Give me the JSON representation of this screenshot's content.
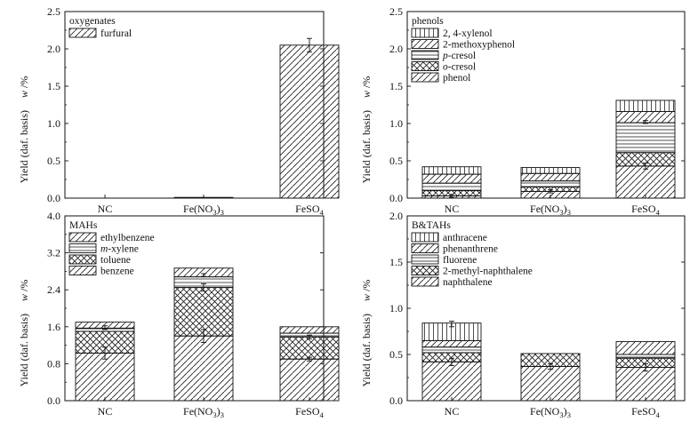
{
  "chart_data": [
    {
      "type": "bar",
      "stacked": true,
      "legend_title": "oxygenates",
      "legend_position": "top-left",
      "categories": [
        "NC",
        "Fe(NO3)3",
        "FeSO4"
      ],
      "ylabel_main": "Yield (daf. basis)",
      "ylabel_w": "w",
      "ylabel_unit": "/%",
      "ylim": [
        0,
        2.5
      ],
      "yticks": [
        "0.0",
        "0.5",
        "1.0",
        "1.5",
        "2.0",
        "2.5"
      ],
      "series": [
        {
          "name": "furfural",
          "pattern": "diag",
          "values": [
            0,
            0.01,
            2.05
          ]
        }
      ],
      "error_bars": [
        {
          "category": "FeSO4",
          "value": 2.05,
          "err": 0.09
        }
      ]
    },
    {
      "type": "bar",
      "stacked": true,
      "legend_title": "phenols",
      "legend_position": "top-left",
      "categories": [
        "NC",
        "Fe(NO3)3",
        "FeSO4"
      ],
      "ylabel_main": "Yield (daf. basis)",
      "ylabel_w": "w",
      "ylabel_unit": "/%",
      "ylim": [
        0,
        2.5
      ],
      "yticks": [
        "0.0",
        "0.5",
        "1.0",
        "1.5",
        "2.0",
        "2.5"
      ],
      "series": [
        {
          "name": "phenol",
          "pattern": "diag",
          "values": [
            0.03,
            0.09,
            0.43
          ]
        },
        {
          "name": "o-cresol",
          "pattern": "cross",
          "values": [
            0.07,
            0.06,
            0.18
          ]
        },
        {
          "name": "p-cresol",
          "pattern": "hlines",
          "values": [
            0.1,
            0.08,
            0.4
          ]
        },
        {
          "name": "2-methoxyphenol",
          "pattern": "diag",
          "values": [
            0.12,
            0.1,
            0.15
          ]
        },
        {
          "name": "2, 4-xylenol",
          "pattern": "vlines",
          "values": [
            0.1,
            0.08,
            0.15
          ]
        }
      ],
      "error_bars": [
        {
          "category": "NC",
          "value": 0.03,
          "err": 0.02
        },
        {
          "category": "Fe(NO3)3",
          "value": 0.09,
          "err": 0.02
        },
        {
          "category": "FeSO4",
          "value": 0.43,
          "err": 0.04
        },
        {
          "category": "FeSO4",
          "value": 1.02,
          "err": 0.02
        }
      ]
    },
    {
      "type": "bar",
      "stacked": true,
      "legend_title": "MAHs",
      "legend_position": "top-left",
      "categories": [
        "NC",
        "Fe(NO3)3",
        "FeSO4"
      ],
      "ylabel_main": "Yield (daf. basis)",
      "ylabel_w": "w",
      "ylabel_unit": "/%",
      "ylim": [
        0,
        4.0
      ],
      "yticks": [
        "0.0",
        "0.8",
        "1.6",
        "2.4",
        "3.2",
        "4.0"
      ],
      "series": [
        {
          "name": "benzene",
          "pattern": "diag",
          "values": [
            1.03,
            1.4,
            0.9
          ]
        },
        {
          "name": "toluene",
          "pattern": "cross",
          "values": [
            0.47,
            1.05,
            0.48
          ]
        },
        {
          "name": "m-xylene",
          "pattern": "hlines",
          "values": [
            0.07,
            0.23,
            0.08
          ]
        },
        {
          "name": "ethylbenzene",
          "pattern": "diag",
          "values": [
            0.13,
            0.19,
            0.14
          ]
        }
      ],
      "error_bars": [
        {
          "category": "NC",
          "value": 1.03,
          "err": 0.13
        },
        {
          "category": "NC",
          "value": 1.58,
          "err": 0.04
        },
        {
          "category": "Fe(NO3)3",
          "value": 1.4,
          "err": 0.14
        },
        {
          "category": "Fe(NO3)3",
          "value": 2.45,
          "err": 0.08
        },
        {
          "category": "Fe(NO3)3",
          "value": 2.72,
          "err": 0.03
        },
        {
          "category": "FeSO4",
          "value": 0.9,
          "err": 0.04
        },
        {
          "category": "FeSO4",
          "value": 1.38,
          "err": 0.04
        }
      ]
    },
    {
      "type": "bar",
      "stacked": true,
      "legend_title": "B&TAHs",
      "legend_position": "top-left",
      "categories": [
        "NC",
        "Fe(NO3)3",
        "FeSO4"
      ],
      "ylabel_main": "Yield (daf. basis)",
      "ylabel_w": "w",
      "ylabel_unit": "/%",
      "ylim": [
        0,
        2.0
      ],
      "yticks": [
        "0.0",
        "0.5",
        "1.0",
        "1.5",
        "2.0"
      ],
      "series": [
        {
          "name": "naphthalene",
          "pattern": "diag",
          "values": [
            0.42,
            0.37,
            0.36
          ]
        },
        {
          "name": "2-methyl-naphthalene",
          "pattern": "cross",
          "values": [
            0.1,
            0.14,
            0.1
          ]
        },
        {
          "name": "fluorene",
          "pattern": "hlines",
          "values": [
            0.06,
            0,
            0.04
          ]
        },
        {
          "name": "phenanthrene",
          "pattern": "diag",
          "values": [
            0.07,
            0,
            0.14
          ]
        },
        {
          "name": "anthracene",
          "pattern": "vlines",
          "values": [
            0.19,
            0,
            0
          ]
        }
      ],
      "error_bars": [
        {
          "category": "NC",
          "value": 0.42,
          "err": 0.04
        },
        {
          "category": "NC",
          "value": 0.83,
          "err": 0.03
        },
        {
          "category": "Fe(NO3)3",
          "value": 0.37,
          "err": 0.03
        },
        {
          "category": "FeSO4",
          "value": 0.36,
          "err": 0.04
        }
      ]
    }
  ]
}
